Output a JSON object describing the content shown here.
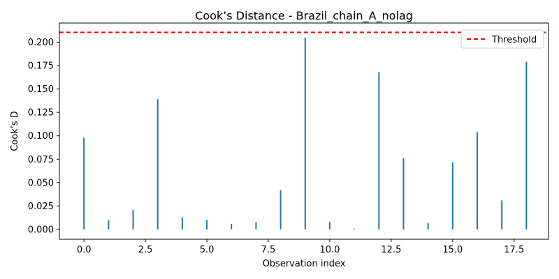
{
  "chart_data": {
    "type": "bar",
    "title": "Cook’s Distance - Brazil_chain_A_nolag",
    "xlabel": "Observation index",
    "ylabel": "Cook’s D",
    "x": [
      0,
      1,
      2,
      3,
      4,
      5,
      6,
      7,
      8,
      9,
      10,
      11,
      12,
      13,
      14,
      15,
      16,
      17,
      18
    ],
    "values": [
      0.098,
      0.01,
      0.021,
      0.139,
      0.013,
      0.01,
      0.006,
      0.008,
      0.042,
      0.205,
      0.008,
      0.001,
      0.168,
      0.076,
      0.007,
      0.072,
      0.104,
      0.031,
      0.179
    ],
    "xlim": [
      -1.0,
      18.9
    ],
    "ylim": [
      -0.0105,
      0.2205
    ],
    "xticks": [
      0.0,
      2.5,
      5.0,
      7.5,
      10.0,
      12.5,
      15.0,
      17.5
    ],
    "xtick_labels": [
      "0.0",
      "2.5",
      "5.0",
      "7.5",
      "10.0",
      "12.5",
      "15.0",
      "17.5"
    ],
    "yticks": [
      0.0,
      0.025,
      0.05,
      0.075,
      0.1,
      0.125,
      0.15,
      0.175,
      0.2
    ],
    "ytick_labels": [
      "0.000",
      "0.025",
      "0.050",
      "0.075",
      "0.100",
      "0.125",
      "0.150",
      "0.175",
      "0.200"
    ],
    "threshold": {
      "name": "Threshold",
      "value": 0.2105,
      "color": "#ff0000",
      "style": "dashed"
    },
    "bar_color": "#1f77b4",
    "grid": false,
    "legend_position": "top-right"
  }
}
